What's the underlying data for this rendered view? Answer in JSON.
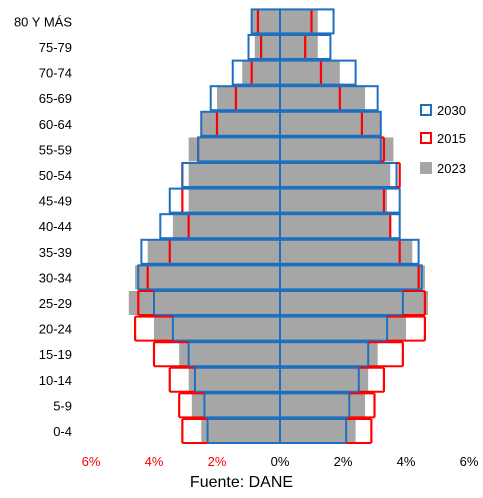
{
  "chart_data": {
    "type": "bar",
    "orientation": "horizontal",
    "subtype": "population-pyramid",
    "categories": [
      "0-4",
      "5-9",
      "10-14",
      "15-19",
      "20-24",
      "25-29",
      "30-34",
      "35-39",
      "40-44",
      "45-49",
      "50-54",
      "55-59",
      "60-64",
      "65-69",
      "70-74",
      "75-79",
      "80 Y MÁS"
    ],
    "series": [
      {
        "name": "2023",
        "style": "filled",
        "color": "#a6a6a6",
        "left": [
          2.5,
          2.8,
          2.9,
          3.2,
          4.0,
          4.8,
          4.6,
          4.2,
          3.4,
          2.9,
          2.9,
          2.9,
          2.5,
          2.0,
          1.2,
          0.8,
          0.9
        ],
        "right": [
          2.4,
          2.7,
          2.8,
          3.1,
          4.0,
          4.7,
          4.6,
          4.2,
          3.5,
          3.4,
          3.5,
          3.6,
          3.2,
          2.7,
          1.9,
          1.2,
          1.2
        ]
      },
      {
        "name": "2015",
        "style": "marker",
        "color": "#ff0000",
        "left": [
          3.1,
          3.2,
          3.5,
          4.0,
          4.6,
          4.5,
          4.2,
          3.5,
          2.9,
          3.1,
          3.1,
          2.6,
          2.0,
          1.4,
          0.9,
          0.6,
          0.7
        ],
        "right": [
          2.9,
          3.0,
          3.3,
          3.9,
          4.6,
          4.6,
          4.4,
          3.8,
          3.5,
          3.3,
          3.8,
          3.3,
          2.6,
          1.9,
          1.3,
          0.8,
          1.0
        ]
      },
      {
        "name": "2030",
        "style": "outline",
        "color": "#1f6fbf",
        "left": [
          2.3,
          2.4,
          2.7,
          2.9,
          3.4,
          4.0,
          4.5,
          4.4,
          3.8,
          3.5,
          3.1,
          2.6,
          2.5,
          2.2,
          1.5,
          1.0,
          0.9
        ],
        "right": [
          2.1,
          2.2,
          2.5,
          2.8,
          3.4,
          3.9,
          4.5,
          4.4,
          3.8,
          3.8,
          3.7,
          3.2,
          3.2,
          3.1,
          2.4,
          1.6,
          1.7
        ]
      }
    ],
    "xlim": [
      -6,
      6
    ],
    "xticks": [
      "6%",
      "4%",
      "2%",
      "0%",
      "2%",
      "4%",
      "6%"
    ],
    "xtick_colors": [
      "#ff0000",
      "#ff0000",
      "#ff0000",
      "#000000",
      "#000000",
      "#000000",
      "#000000"
    ],
    "legend": [
      "2030",
      "2015",
      "2023"
    ],
    "legend_position": "right",
    "grid": false
  },
  "source": "Fuente: DANE"
}
